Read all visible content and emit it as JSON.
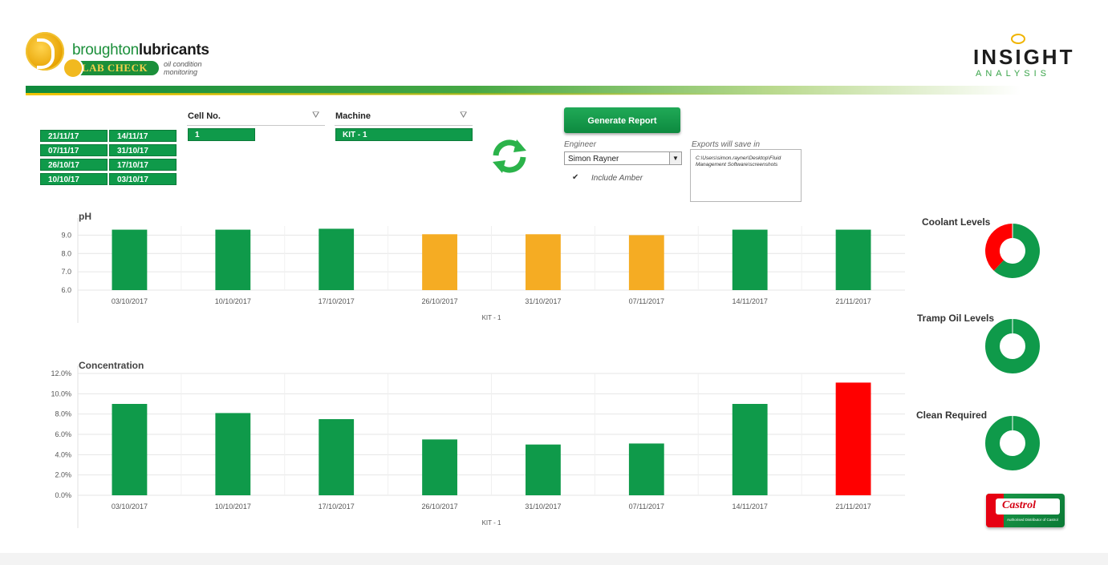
{
  "header": {
    "brand_light": "broughton",
    "brand_bold": "lubricants",
    "lab_check": "LAB CHECK",
    "subtitle": "oil condition monitoring",
    "partner_title": "INSIGHT",
    "partner_sub": "ANALYSIS"
  },
  "date_slicer": {
    "items": [
      "21/11/17",
      "14/11/17",
      "07/11/17",
      "31/10/17",
      "26/10/17",
      "17/10/17",
      "10/10/17",
      "03/10/17"
    ]
  },
  "cell_slicer": {
    "title": "Cell No.",
    "selected": "1"
  },
  "machine_slicer": {
    "title": "Machine",
    "selected": "KIT - 1"
  },
  "report": {
    "generate_label": "Generate Report",
    "engineer_label": "Engineer",
    "engineer_value": "Simon Rayner",
    "include_amber_label": "Include Amber",
    "include_amber_checked": true,
    "exports_label": "Exports will save in",
    "exports_path": "C:\\Users\\simon.rayner\\Desktop\\Fluid Management Software\\screenshots"
  },
  "colors": {
    "green": "#0f9a4a",
    "amber": "#f5ac23",
    "red": "#ff0000"
  },
  "chart_data": [
    {
      "type": "bar",
      "title": "pH",
      "xlabel": "KIT - 1",
      "ylabel": "",
      "categories": [
        "03/10/2017",
        "10/10/2017",
        "17/10/2017",
        "26/10/2017",
        "31/10/2017",
        "07/11/2017",
        "14/11/2017",
        "21/11/2017"
      ],
      "values": [
        9.3,
        9.3,
        9.35,
        9.05,
        9.05,
        9.0,
        9.3,
        9.3
      ],
      "bar_colors": [
        "green",
        "green",
        "green",
        "amber",
        "amber",
        "amber",
        "green",
        "green"
      ],
      "yticks": [
        "6.0",
        "7.0",
        "8.0",
        "9.0"
      ],
      "ylim": [
        6.0,
        9.5
      ],
      "grid": true
    },
    {
      "type": "bar",
      "title": "Concentration",
      "xlabel": "KIT - 1",
      "ylabel": "",
      "categories": [
        "03/10/2017",
        "10/10/2017",
        "17/10/2017",
        "26/10/2017",
        "31/10/2017",
        "07/11/2017",
        "14/11/2017",
        "21/11/2017"
      ],
      "values": [
        9.0,
        8.1,
        7.5,
        5.5,
        5.0,
        5.1,
        9.0,
        11.1
      ],
      "bar_colors": [
        "green",
        "green",
        "green",
        "green",
        "green",
        "green",
        "green",
        "red"
      ],
      "yticks": [
        "0.0%",
        "2.0%",
        "4.0%",
        "6.0%",
        "8.0%",
        "10.0%",
        "12.0%"
      ],
      "ylim": [
        0,
        12
      ],
      "grid": true
    },
    {
      "type": "pie",
      "title": "Coolant Levels",
      "values": [
        0.62,
        0.38
      ],
      "slice_colors": [
        "green",
        "red"
      ]
    },
    {
      "type": "pie",
      "title": "Tramp Oil Levels",
      "values": [
        1.0
      ],
      "slice_colors": [
        "green"
      ]
    },
    {
      "type": "pie",
      "title": "Clean Required",
      "values": [
        1.0
      ],
      "slice_colors": [
        "green"
      ]
    }
  ],
  "badge": {
    "brand": "Castrol",
    "sub": "Authorised Distributor of Castrol"
  }
}
